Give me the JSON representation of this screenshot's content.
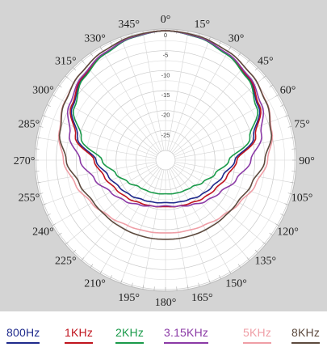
{
  "chart_data": {
    "type": "polar-line",
    "angle_labels": [
      "0°",
      "15°",
      "30°",
      "45°",
      "60°",
      "75°",
      "90°",
      "105°",
      "120°",
      "135°",
      "150°",
      "165°",
      "180°",
      "195°",
      "210°",
      "225°",
      "240°",
      "255°",
      "270°",
      "285°",
      "300°",
      "315°",
      "330°",
      "345°"
    ],
    "angle_values": [
      0,
      15,
      30,
      45,
      60,
      75,
      90,
      105,
      120,
      135,
      150,
      165,
      180,
      195,
      210,
      225,
      240,
      255,
      270,
      285,
      300,
      315,
      330,
      345
    ],
    "radial_labels": [
      "0",
      "-5",
      "-10",
      "-15",
      "-20",
      "-25"
    ],
    "radial_values": [
      0,
      -5,
      -10,
      -15,
      -20,
      -25
    ],
    "rlim": [
      -30,
      0
    ],
    "rlabel_unit": "dB",
    "grid": true,
    "legend_position": "bottom",
    "angles": [
      0,
      15,
      30,
      45,
      60,
      75,
      90,
      105,
      120,
      135,
      150,
      165,
      180
    ],
    "series": [
      {
        "name": "800Hz",
        "color": "#1f2a8c",
        "values": [
          0,
          -0.6,
          -1.8,
          -3.2,
          -5.5,
          -9.5,
          -15,
          -17.5,
          -19,
          -20,
          -21,
          -21.5,
          -21.8
        ]
      },
      {
        "name": "1KHz",
        "color": "#c0141e",
        "values": [
          0,
          -0.5,
          -1.6,
          -3,
          -5.2,
          -9,
          -14.5,
          -16.5,
          -18,
          -19,
          -20,
          -20.5,
          -20.8
        ]
      },
      {
        "name": "2KHz",
        "color": "#1a9a4a",
        "values": [
          0,
          -0.6,
          -1.8,
          -3.4,
          -6,
          -10.5,
          -16.5,
          -19.5,
          -21.5,
          -23,
          -23.5,
          -23.8,
          -24
        ]
      },
      {
        "name": "3.15KHz",
        "color": "#8b3aa6",
        "values": [
          0,
          -0.5,
          -1.5,
          -2.8,
          -4.6,
          -7.5,
          -11,
          -14,
          -16.5,
          -18,
          -19.5,
          -20.5,
          -21
        ]
      },
      {
        "name": "5KHz",
        "color": "#ef9ea6",
        "values": [
          0,
          -0.3,
          -1,
          -2,
          -3.2,
          -4.8,
          -6.8,
          -9,
          -11,
          -12.5,
          -13.5,
          -14,
          -14.2
        ]
      },
      {
        "name": "8KHz",
        "color": "#5d4a3e",
        "values": [
          0,
          -0.3,
          -1,
          -2,
          -3.3,
          -5,
          -7.5,
          -10,
          -11.5,
          -12,
          -12.3,
          -12.5,
          -12.6
        ]
      }
    ]
  }
}
